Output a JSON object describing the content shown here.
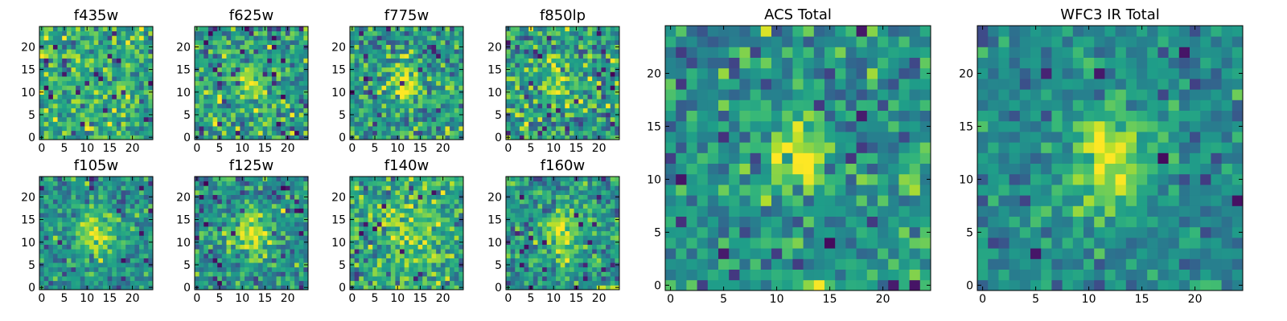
{
  "figure": {
    "description_free": true
  },
  "chart_data": [
    {
      "type": "heatmap",
      "title": "f435w",
      "grid_size": 25,
      "seed": 11,
      "source_amp": 0.05,
      "source_sigma": 3.0,
      "noise": 0.17,
      "base": 0.62,
      "clip": [
        0.0,
        1.0
      ],
      "xticks": [
        0,
        5,
        10,
        15,
        20
      ],
      "yticks": [
        0,
        5,
        10,
        15,
        20
      ],
      "xlim": [
        -0.5,
        24.5
      ],
      "ylim": [
        -0.5,
        24.5
      ],
      "colormap": "viridis",
      "bad_pixels": 16
    },
    {
      "type": "heatmap",
      "title": "f625w",
      "grid_size": 25,
      "seed": 23,
      "source_amp": 0.32,
      "source_sigma": 2.2,
      "noise": 0.18,
      "base": 0.55,
      "clip": [
        0.0,
        1.0
      ],
      "xticks": [
        0,
        5,
        10,
        15,
        20
      ],
      "yticks": [
        0,
        5,
        10,
        15,
        20
      ],
      "xlim": [
        -0.5,
        24.5
      ],
      "ylim": [
        -0.5,
        24.5
      ],
      "colormap": "viridis",
      "bad_pixels": 14
    },
    {
      "type": "heatmap",
      "title": "f775w",
      "grid_size": 25,
      "seed": 37,
      "source_amp": 0.38,
      "source_sigma": 2.2,
      "noise": 0.17,
      "base": 0.55,
      "clip": [
        0.0,
        1.0
      ],
      "xticks": [
        0,
        5,
        10,
        15,
        20
      ],
      "yticks": [
        0,
        5,
        10,
        15,
        20
      ],
      "xlim": [
        -0.5,
        24.5
      ],
      "ylim": [
        -0.5,
        24.5
      ],
      "colormap": "viridis",
      "bad_pixels": 8
    },
    {
      "type": "heatmap",
      "title": "f850lp",
      "grid_size": 25,
      "seed": 41,
      "source_amp": 0.32,
      "source_sigma": 2.2,
      "noise": 0.2,
      "base": 0.56,
      "clip": [
        0.0,
        1.0
      ],
      "xticks": [
        0,
        5,
        10,
        15,
        20
      ],
      "yticks": [
        0,
        5,
        10,
        15,
        20
      ],
      "xlim": [
        -0.5,
        24.5
      ],
      "ylim": [
        -0.5,
        24.5
      ],
      "colormap": "viridis",
      "bad_pixels": 16
    },
    {
      "type": "heatmap",
      "title": "f105w",
      "grid_size": 25,
      "seed": 53,
      "source_amp": 0.42,
      "source_sigma": 2.8,
      "noise": 0.14,
      "base": 0.5,
      "clip": [
        0.0,
        1.0
      ],
      "xticks": [
        0,
        5,
        10,
        15,
        20
      ],
      "yticks": [
        0,
        5,
        10,
        15,
        20
      ],
      "xlim": [
        -0.5,
        24.5
      ],
      "ylim": [
        -0.5,
        24.5
      ],
      "colormap": "viridis",
      "bad_pixels": 8
    },
    {
      "type": "heatmap",
      "title": "f125w",
      "grid_size": 25,
      "seed": 67,
      "source_amp": 0.45,
      "source_sigma": 2.6,
      "noise": 0.15,
      "base": 0.48,
      "clip": [
        0.0,
        1.0
      ],
      "xticks": [
        0,
        5,
        10,
        15,
        20
      ],
      "yticks": [
        0,
        5,
        10,
        15,
        20
      ],
      "xlim": [
        -0.5,
        24.5
      ],
      "ylim": [
        -0.5,
        24.5
      ],
      "colormap": "viridis",
      "bad_pixels": 12
    },
    {
      "type": "heatmap",
      "title": "f140w",
      "grid_size": 25,
      "seed": 79,
      "source_amp": 0.25,
      "source_sigma": 3.2,
      "noise": 0.17,
      "base": 0.6,
      "clip": [
        0.0,
        1.0
      ],
      "xticks": [
        0,
        5,
        10,
        15,
        20
      ],
      "yticks": [
        0,
        5,
        10,
        15,
        20
      ],
      "xlim": [
        -0.5,
        24.5
      ],
      "ylim": [
        -0.5,
        24.5
      ],
      "colormap": "viridis",
      "bad_pixels": 10
    },
    {
      "type": "heatmap",
      "title": "f160w",
      "grid_size": 25,
      "seed": 83,
      "source_amp": 0.4,
      "source_sigma": 2.8,
      "noise": 0.16,
      "base": 0.52,
      "clip": [
        0.0,
        1.0
      ],
      "xticks": [
        0,
        5,
        10,
        15,
        20
      ],
      "yticks": [
        0,
        5,
        10,
        15,
        20
      ],
      "xlim": [
        -0.5,
        24.5
      ],
      "ylim": [
        -0.5,
        24.5
      ],
      "colormap": "viridis",
      "bad_pixels": 14
    },
    {
      "type": "heatmap",
      "title": "ACS Total",
      "grid_size": 25,
      "seed": 97,
      "source_amp": 0.45,
      "source_sigma": 1.9,
      "noise": 0.16,
      "base": 0.5,
      "clip": [
        0.0,
        1.0
      ],
      "xticks": [
        0,
        5,
        10,
        15,
        20
      ],
      "yticks": [
        0,
        5,
        10,
        15,
        20
      ],
      "xlim": [
        -0.5,
        24.5
      ],
      "ylim": [
        -0.5,
        24.5
      ],
      "colormap": "viridis",
      "bad_pixels": 6
    },
    {
      "type": "heatmap",
      "title": "WFC3 IR Total",
      "grid_size": 25,
      "seed": 101,
      "source_amp": 0.5,
      "source_sigma": 2.6,
      "noise": 0.11,
      "base": 0.47,
      "clip": [
        0.0,
        1.0
      ],
      "xticks": [
        0,
        5,
        10,
        15,
        20
      ],
      "yticks": [
        0,
        5,
        10,
        15,
        20
      ],
      "xlim": [
        -0.5,
        24.5
      ],
      "ylim": [
        -0.5,
        24.5
      ],
      "colormap": "viridis",
      "bad_pixels": 6
    }
  ]
}
